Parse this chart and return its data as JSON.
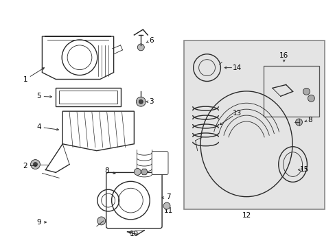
{
  "bg_color": "#ffffff",
  "fig_width": 4.89,
  "fig_height": 3.6,
  "dpi": 100,
  "line_color": "#2a2a2a",
  "box_fill": "#e0e0e0",
  "box_edge": "#888888"
}
